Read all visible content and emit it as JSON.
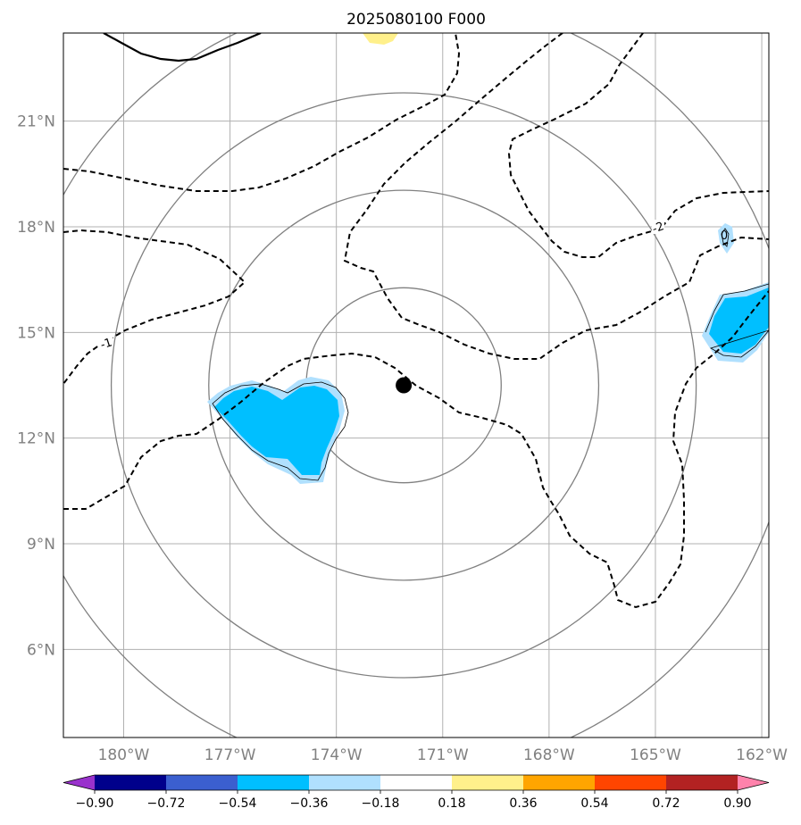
{
  "chart_data": {
    "type": "contour-map",
    "title": "2025080100 F000",
    "x_axis": {
      "ticks": [
        -180,
        -177,
        -174,
        -171,
        -168,
        -165,
        -162
      ],
      "tick_labels": [
        "180°W",
        "177°W",
        "174°W",
        "171°W",
        "168°W",
        "165°W",
        "162°W"
      ],
      "xlim": [
        -181.7,
        -161.8
      ]
    },
    "y_axis": {
      "ticks": [
        6,
        9,
        12,
        15,
        18,
        21
      ],
      "tick_labels": [
        "6°N",
        "9°N",
        "12°N",
        "15°N",
        "18°N",
        "21°N"
      ],
      "ylim": [
        3.5,
        23.5
      ]
    },
    "grid": true,
    "center": {
      "lon": -172.1,
      "lat": 13.5
    },
    "range_circles_deg": [
      2.75,
      5.5,
      8.25,
      11.0
    ],
    "contour_labels": [
      {
        "text": "-1",
        "lon": -180.5,
        "lat": 14.7
      },
      {
        "text": "-2",
        "lon": -164.9,
        "lat": 18.0
      },
      {
        "text": "0",
        "lon": -162.8,
        "lat": 17.8
      }
    ],
    "colorbar": {
      "levels": [
        -0.9,
        -0.72,
        -0.54,
        -0.36,
        -0.18,
        0.18,
        0.36,
        0.54,
        0.72,
        0.9
      ],
      "tick_labels": [
        "−0.90",
        "−0.72",
        "−0.54",
        "−0.36",
        "−0.18",
        "0.18",
        "0.36",
        "0.54",
        "0.72",
        "0.90"
      ],
      "colors": [
        "#9932cc",
        "#00008b",
        "#3b5fcf",
        "#00bfff",
        "#b0e0fe",
        "#ffffff",
        "#fff08b",
        "#ffa500",
        "#ff4500",
        "#b22222",
        "#ff82ab"
      ]
    }
  }
}
